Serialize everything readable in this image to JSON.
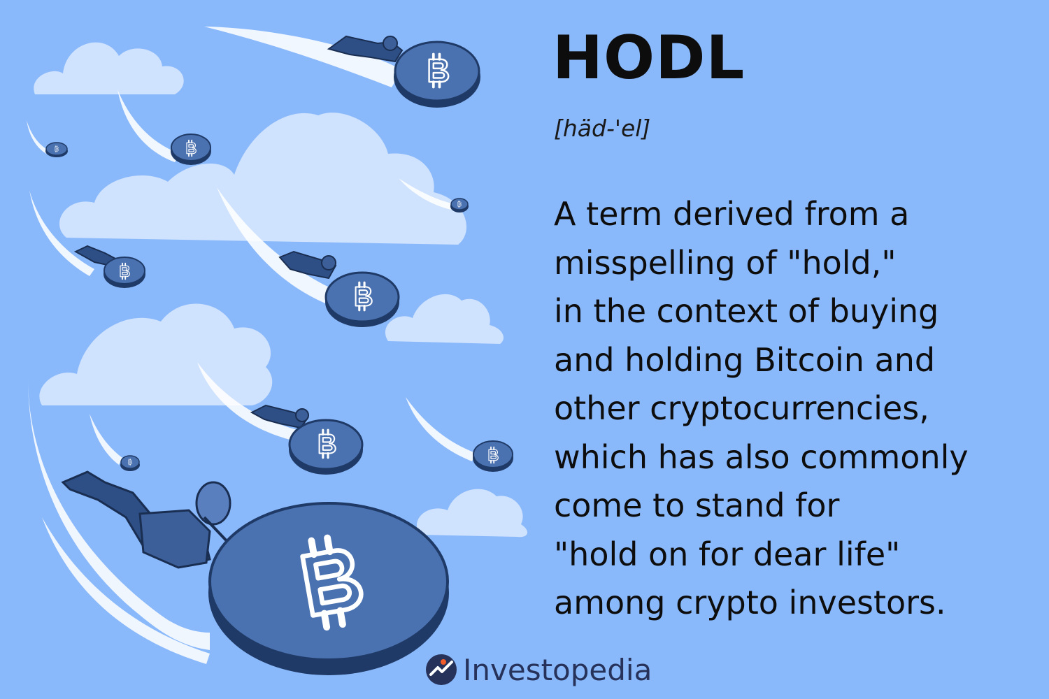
{
  "term": {
    "title": "HODL",
    "pronunciation": "[häd-'el]"
  },
  "definition": {
    "lines": [
      "A term derived from a",
      "misspelling of \"hold,\"",
      "in the context of buying",
      "and holding Bitcoin and",
      "other cryptocurrencies,",
      "which has also commonly",
      "come to stand for",
      "\"hold on for dear life\"",
      "among crypto investors."
    ]
  },
  "brand": {
    "name": "Investopedia",
    "logo_icon": "investopedia-logo-icon"
  },
  "illustration": {
    "icon": "bitcoin-icon",
    "figures": "people-riding-coins"
  },
  "colors": {
    "background": "#8ab9fb",
    "cloud": "#cfe2fe",
    "coin": "#4b72b0",
    "coin_rim": "#1f3a66",
    "text": "#0d0d0d",
    "brand": "#27325a"
  }
}
